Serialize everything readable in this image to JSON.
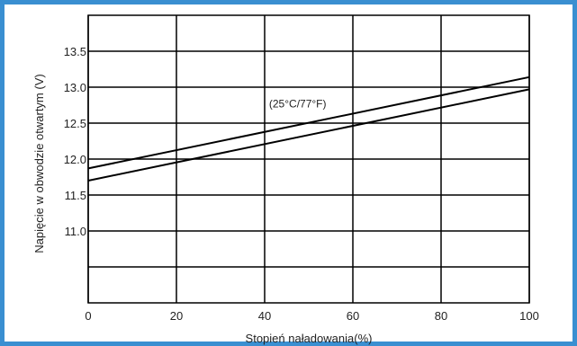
{
  "frame_color": "#3a8fd1",
  "chart_data": {
    "type": "line",
    "xlabel": "Stopień naładowania(%)",
    "ylabel": "Napięcie w obwodzie otwartym (V)",
    "xlim": [
      0,
      100
    ],
    "ylim": [
      10.0,
      14.0
    ],
    "x_ticks": [
      0,
      20,
      40,
      60,
      80,
      100
    ],
    "y_ticks": [
      10.5,
      11.0,
      11.5,
      12.0,
      12.5,
      13.0,
      13.5
    ],
    "y_tick_labels": [
      "",
      "11.0",
      "11.5",
      "12.0",
      "12.5",
      "13.0",
      "13.5"
    ],
    "grid": true,
    "series": [
      {
        "x": [
          0,
          100
        ],
        "y": [
          11.87,
          13.14
        ],
        "color": "#000000"
      },
      {
        "x": [
          0,
          100
        ],
        "y": [
          11.7,
          12.97
        ],
        "color": "#000000"
      }
    ],
    "annotation": {
      "text": "(25°C/77°F)",
      "x": 41,
      "y": 12.72
    }
  }
}
